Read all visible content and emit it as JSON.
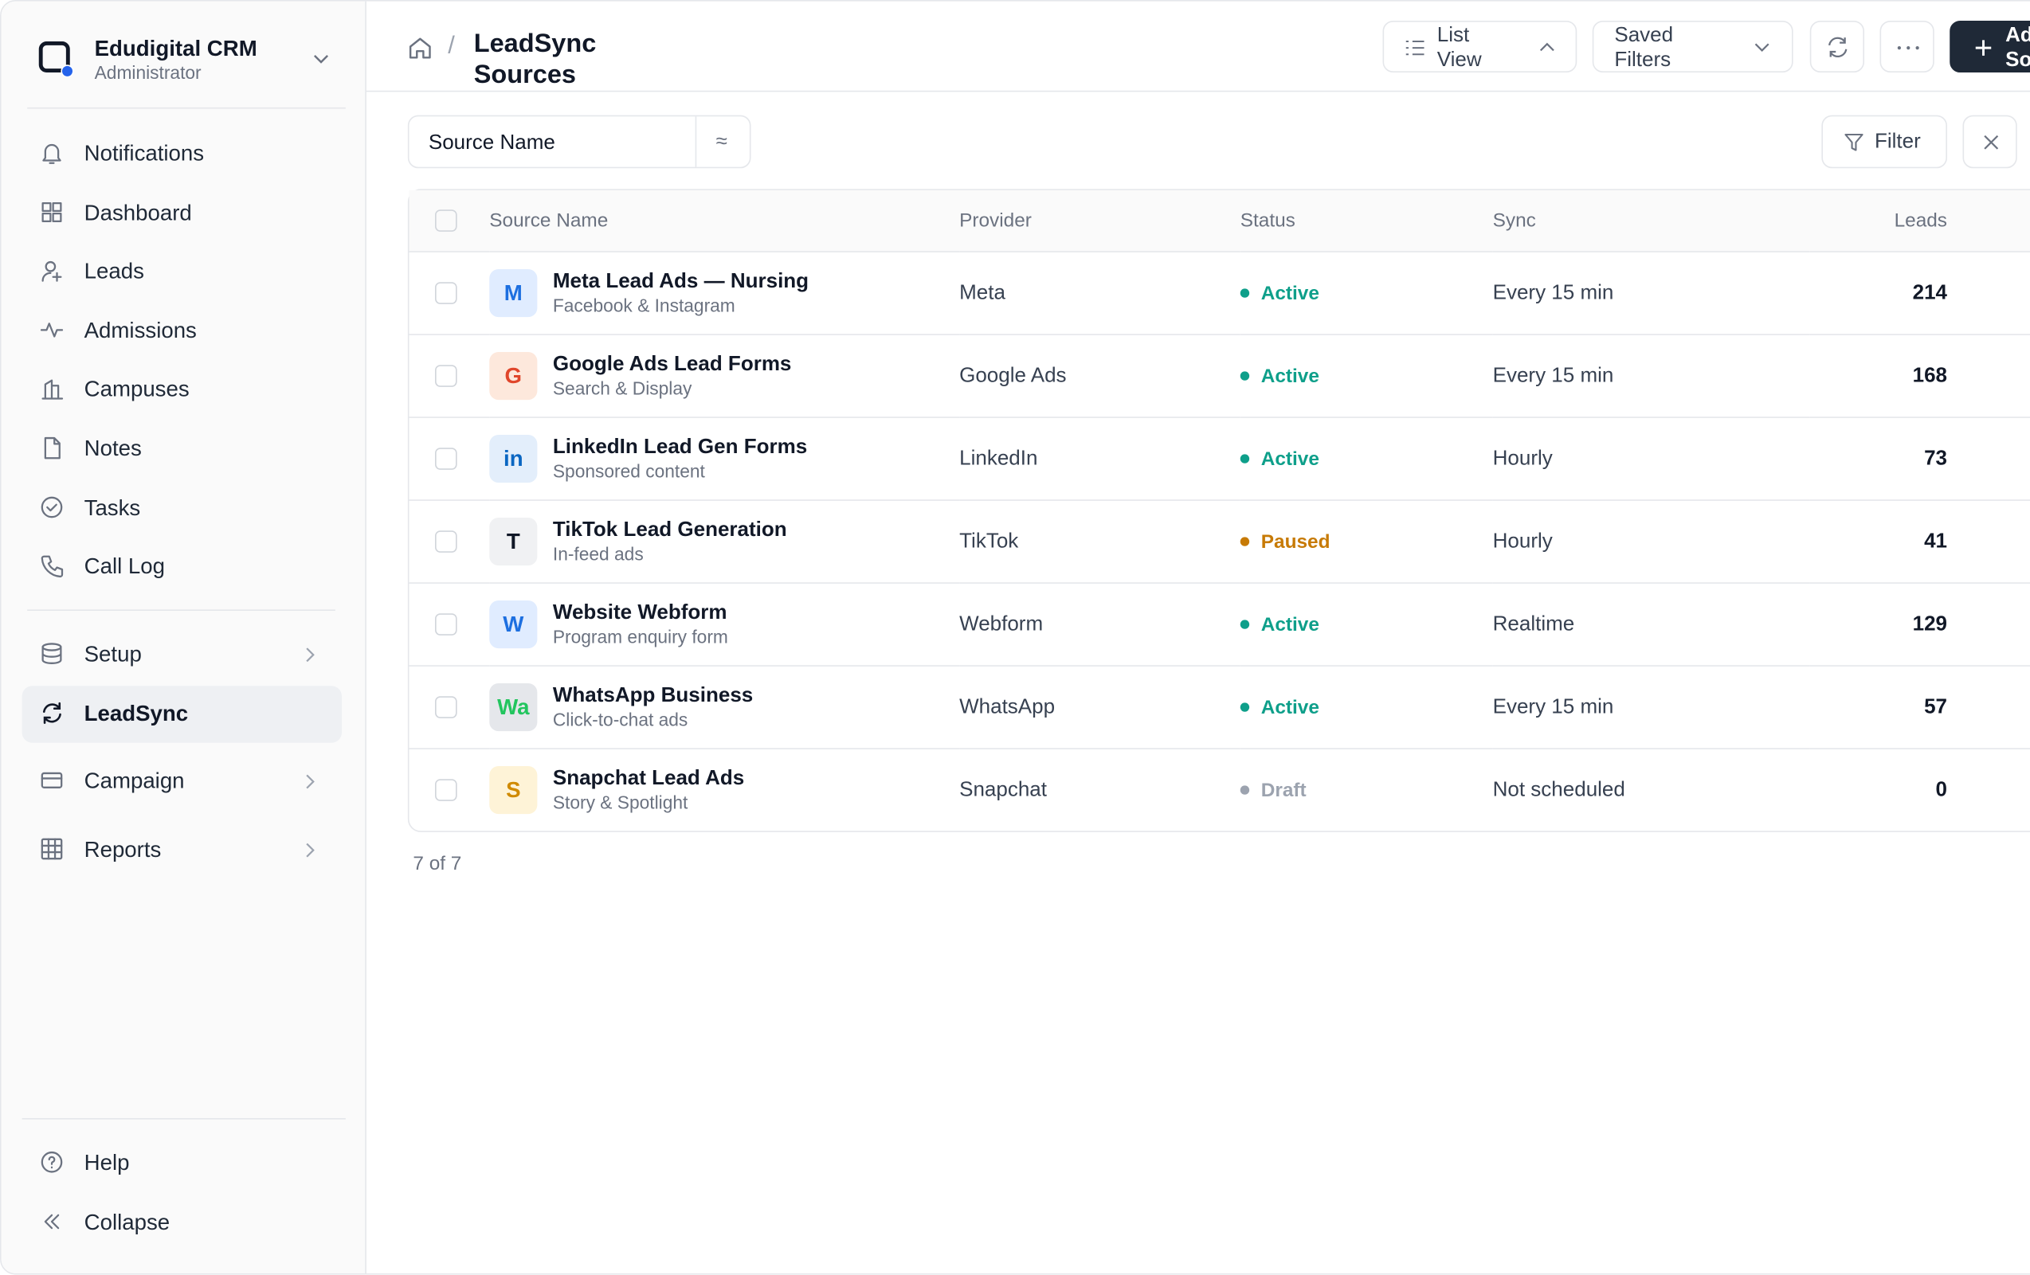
{
  "sidebar": {
    "brand": "Edudigital CRM",
    "role": "Administrator",
    "nav": [
      "Notifications",
      "Dashboard",
      "Leads",
      "Admissions",
      "Campuses",
      "Notes",
      "Tasks",
      "Call Log"
    ],
    "nav2": [
      "Setup",
      "LeadSync",
      "Campaign",
      "Reports"
    ],
    "footer": [
      "Help",
      "Collapse"
    ]
  },
  "header": {
    "title": "LeadSync Sources",
    "buttons": [
      "List View",
      "Saved Filters",
      "Add Source"
    ]
  },
  "toolbar": {
    "search_field": "Source Name",
    "operator": "≈",
    "filter": "Filter"
  },
  "table": {
    "columns": [
      "Source Name",
      "Provider",
      "Status",
      "Sync",
      "Leads"
    ],
    "rows": [
      {
        "icon": "M",
        "name": "Meta Lead Ads — Nursing",
        "subtitle": "Facebook & Instagram",
        "provider": "Meta",
        "status": "Active",
        "sync": "Every 15 min",
        "leads": 214
      },
      {
        "icon": "G",
        "name": "Google Ads Lead Forms",
        "subtitle": "Search & Display",
        "provider": "Google Ads",
        "status": "Active",
        "sync": "Every 15 min",
        "leads": 168
      },
      {
        "icon": "in",
        "name": "LinkedIn Lead Gen Forms",
        "subtitle": "Sponsored content",
        "provider": "LinkedIn",
        "status": "Active",
        "sync": "Hourly",
        "leads": 73
      },
      {
        "icon": "T",
        "name": "TikTok Lead Generation",
        "subtitle": "In-feed ads",
        "provider": "TikTok",
        "status": "Paused",
        "sync": "Hourly",
        "leads": 41
      },
      {
        "icon": "W",
        "name": "Website Webform",
        "subtitle": "Program enquiry form",
        "provider": "Webform",
        "status": "Active",
        "sync": "Realtime",
        "leads": 129
      },
      {
        "icon": "Wa",
        "name": "WhatsApp Business",
        "subtitle": "Click-to-chat ads",
        "provider": "WhatsApp",
        "status": "Active",
        "sync": "Every 15 min",
        "leads": 57
      },
      {
        "icon": "S",
        "name": "Snapchat Lead Ads",
        "subtitle": "Story & Spotlight",
        "provider": "Snapchat",
        "status": "Draft",
        "sync": "Not scheduled",
        "leads": 0
      }
    ],
    "count": "7 of 7"
  }
}
